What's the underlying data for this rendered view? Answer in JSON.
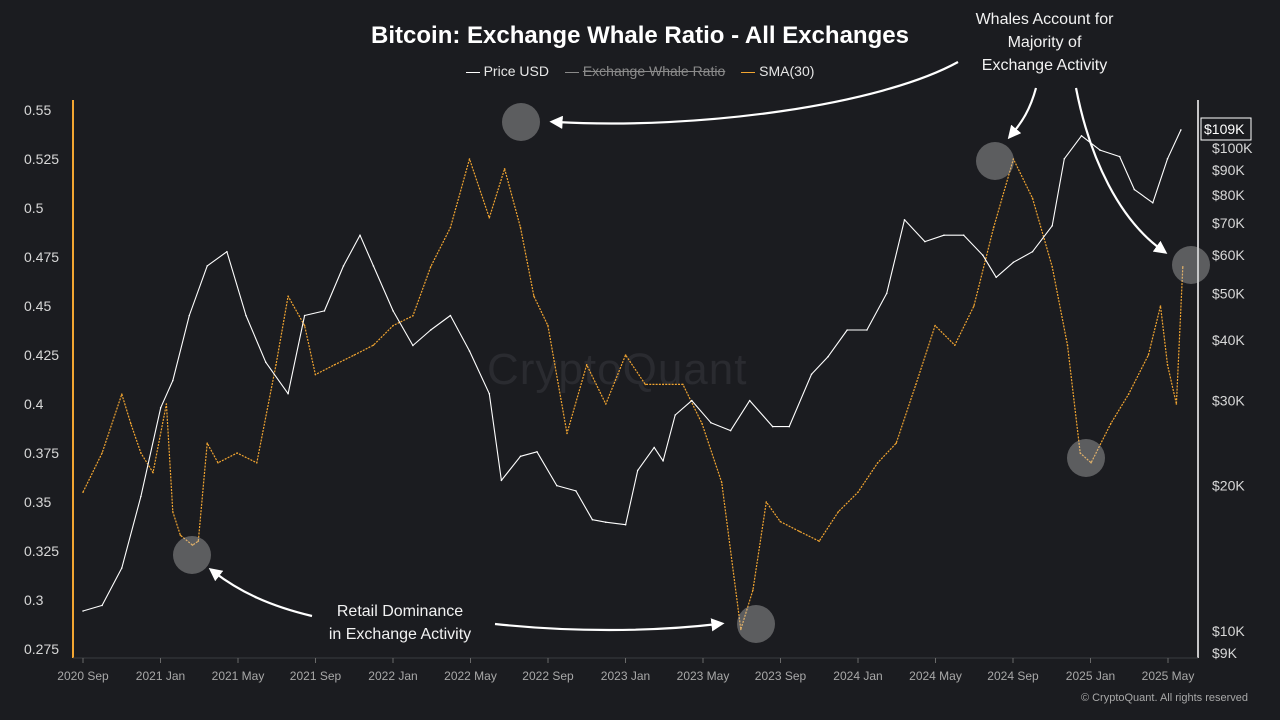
{
  "chart_data": {
    "type": "line",
    "title": "Bitcoin: Exchange Whale Ratio - All Exchanges",
    "legend": [
      {
        "label": "Price USD",
        "color": "#ffffff",
        "hidden": false
      },
      {
        "label": "Exchange Whale Ratio",
        "color": "#8a8a8a",
        "hidden": true
      },
      {
        "label": "SMA(30)",
        "color": "#f2a531",
        "hidden": false
      }
    ],
    "legend_position": "top-center",
    "x_ticks": [
      "2020 Sep",
      "2021 Jan",
      "2021 May",
      "2021 Sep",
      "2022 Jan",
      "2022 May",
      "2022 Sep",
      "2023 Jan",
      "2023 May",
      "2023 Sep",
      "2024 Jan",
      "2024 May",
      "2024 Sep",
      "2025 Jan",
      "2025 May"
    ],
    "y_left": {
      "ticks": [
        "0.55",
        "0.525",
        "0.5",
        "0.475",
        "0.45",
        "0.425",
        "0.4",
        "0.375",
        "0.35",
        "0.325",
        "0.3",
        "0.275"
      ],
      "range": [
        0.275,
        0.55
      ]
    },
    "y_right": {
      "ticks": [
        "$100K",
        "$90K",
        "$80K",
        "$70K",
        "$60K",
        "$50K",
        "$40K",
        "$30K",
        "$20K",
        "$10K",
        "$9K"
      ],
      "scale": "log",
      "range": [
        9000,
        115000
      ],
      "current_price_label": "$109K"
    },
    "grid": false,
    "series": [
      {
        "name": "SMA(30)",
        "axis": "left",
        "color": "#f2a531",
        "x": [
          "2020-09-01",
          "2020-10-01",
          "2020-11-01",
          "2020-11-15",
          "2020-12-01",
          "2020-12-20",
          "2021-01-10",
          "2021-01-20",
          "2021-02-01",
          "2021-02-20",
          "2021-03-01",
          "2021-03-15",
          "2021-04-01",
          "2021-05-01",
          "2021-06-01",
          "2021-07-01",
          "2021-07-20",
          "2021-08-15",
          "2021-09-01",
          "2021-10-01",
          "2021-11-01",
          "2021-12-01",
          "2022-01-01",
          "2022-02-01",
          "2022-03-01",
          "2022-04-01",
          "2022-05-01",
          "2022-06-01",
          "2022-06-25",
          "2022-07-20",
          "2022-08-10",
          "2022-09-01",
          "2022-10-01",
          "2022-11-01",
          "2022-12-01",
          "2023-01-01",
          "2023-02-01",
          "2023-03-01",
          "2023-04-01",
          "2023-05-01",
          "2023-06-01",
          "2023-07-01",
          "2023-07-20",
          "2023-08-10",
          "2023-09-01",
          "2023-10-01",
          "2023-11-01",
          "2023-12-01",
          "2024-01-01",
          "2024-02-01",
          "2024-03-01",
          "2024-04-01",
          "2024-05-01",
          "2024-06-01",
          "2024-07-01",
          "2024-08-01",
          "2024-09-01",
          "2024-10-01",
          "2024-11-01",
          "2024-11-25",
          "2024-12-15",
          "2025-01-01",
          "2025-02-01",
          "2025-03-01",
          "2025-04-01",
          "2025-04-20",
          "2025-05-01",
          "2025-05-15",
          "2025-05-25"
        ],
        "values": [
          0.355,
          0.375,
          0.405,
          0.39,
          0.375,
          0.365,
          0.4,
          0.345,
          0.333,
          0.328,
          0.33,
          0.38,
          0.37,
          0.375,
          0.37,
          0.42,
          0.455,
          0.44,
          0.415,
          0.42,
          0.425,
          0.43,
          0.44,
          0.445,
          0.47,
          0.49,
          0.525,
          0.495,
          0.52,
          0.49,
          0.455,
          0.44,
          0.385,
          0.42,
          0.4,
          0.425,
          0.41,
          0.41,
          0.41,
          0.39,
          0.36,
          0.285,
          0.305,
          0.35,
          0.34,
          0.335,
          0.33,
          0.345,
          0.355,
          0.37,
          0.38,
          0.41,
          0.44,
          0.43,
          0.45,
          0.49,
          0.525,
          0.505,
          0.47,
          0.43,
          0.375,
          0.37,
          0.39,
          0.405,
          0.425,
          0.45,
          0.42,
          0.4,
          0.47
        ]
      },
      {
        "name": "Price USD",
        "axis": "right",
        "color": "#ffffff",
        "x": [
          "2020-09-01",
          "2020-10-01",
          "2020-11-01",
          "2020-12-01",
          "2021-01-01",
          "2021-01-20",
          "2021-02-15",
          "2021-03-15",
          "2021-04-15",
          "2021-05-15",
          "2021-06-15",
          "2021-07-20",
          "2021-08-15",
          "2021-09-15",
          "2021-10-15",
          "2021-11-10",
          "2021-12-01",
          "2022-01-01",
          "2022-02-01",
          "2022-03-01",
          "2022-04-01",
          "2022-05-01",
          "2022-06-01",
          "2022-06-20",
          "2022-07-20",
          "2022-08-15",
          "2022-09-15",
          "2022-10-15",
          "2022-11-10",
          "2022-12-01",
          "2023-01-01",
          "2023-01-20",
          "2023-02-15",
          "2023-03-01",
          "2023-03-20",
          "2023-04-15",
          "2023-05-15",
          "2023-06-15",
          "2023-07-15",
          "2023-08-20",
          "2023-09-15",
          "2023-10-20",
          "2023-11-15",
          "2023-12-15",
          "2024-01-15",
          "2024-02-15",
          "2024-03-14",
          "2024-04-15",
          "2024-05-15",
          "2024-06-15",
          "2024-07-15",
          "2024-08-05",
          "2024-09-01",
          "2024-10-01",
          "2024-11-01",
          "2024-11-20",
          "2024-12-17",
          "2025-01-15",
          "2025-02-15",
          "2025-03-10",
          "2025-04-08",
          "2025-05-01",
          "2025-05-22"
        ],
        "values": [
          11000,
          11300,
          13500,
          19000,
          29000,
          33000,
          45000,
          57000,
          61000,
          45000,
          36000,
          31000,
          45000,
          46000,
          57000,
          66000,
          57000,
          46000,
          39000,
          42000,
          45000,
          38000,
          31000,
          20500,
          23000,
          23500,
          20000,
          19500,
          17000,
          16800,
          16600,
          21500,
          24000,
          22500,
          28000,
          30000,
          27000,
          26000,
          30000,
          26500,
          26500,
          34000,
          37000,
          42000,
          42000,
          50000,
          71000,
          64000,
          66000,
          66000,
          60000,
          54000,
          58000,
          61000,
          69000,
          95000,
          106000,
          99000,
          96000,
          82000,
          77000,
          95000,
          109000
        ]
      }
    ],
    "annotations": [
      {
        "text": "Whales Account for\nMajority of\nExchange Activity"
      },
      {
        "text": "Retail Dominance\nin Exchange Activity"
      }
    ],
    "watermark": "CryptoQuant",
    "copyright": "© CryptoQuant. All rights reserved"
  }
}
